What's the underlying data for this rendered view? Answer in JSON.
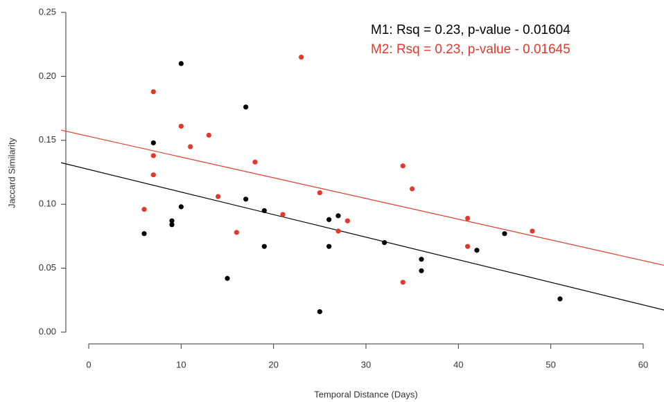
{
  "chart_data": {
    "type": "scatter",
    "xlabel": "Temporal Distance (Days)",
    "ylabel": "Jaccard Similarity",
    "xlim": [
      -3,
      62.25
    ],
    "ylim": [
      -0.0054,
      0.2543
    ],
    "xticks": [
      0,
      10,
      20,
      30,
      40,
      50,
      60
    ],
    "yticks": [
      {
        "value": 0,
        "label": "0.00"
      },
      0.05,
      {
        "value": 0.1,
        "label": "0.10"
      },
      0.15,
      {
        "value": 0.2,
        "label": "0.20"
      },
      0.25
    ],
    "annotations": [
      {
        "text": "M1: Rsq = 0.23, p-value - 0.01604",
        "color": "#000000"
      },
      {
        "text": "M2: Rsq = 0.23, p-value - 0.01645",
        "color": "#e0392b"
      }
    ],
    "series": [
      {
        "color": "#000000",
        "x": [
          6,
          7,
          9,
          9,
          10,
          10,
          15,
          17,
          17,
          19,
          19,
          25,
          26,
          26,
          27,
          32,
          36,
          36,
          42,
          45,
          51
        ],
        "values": [
          0.077,
          0.148,
          0.087,
          0.084,
          0.21,
          0.098,
          0.042,
          0.176,
          0.104,
          0.095,
          0.067,
          0.016,
          0.088,
          0.067,
          0.091,
          0.07,
          0.057,
          0.048,
          0.064,
          0.077,
          0.026
        ],
        "fit": {
          "intercept": 0.1272,
          "slope": -0.001765
        }
      },
      {
        "color": "#e0392b",
        "x": [
          6,
          7,
          7,
          7,
          10,
          11,
          13,
          14,
          16,
          18,
          21,
          23,
          25,
          27,
          28,
          34,
          34,
          35,
          41,
          41,
          48
        ],
        "values": [
          0.096,
          0.188,
          0.138,
          0.123,
          0.161,
          0.145,
          0.154,
          0.106,
          0.078,
          0.133,
          0.092,
          0.215,
          0.109,
          0.079,
          0.087,
          0.13,
          0.039,
          0.112,
          0.089,
          0.067,
          0.079
        ],
        "fit": {
          "intercept": 0.1531,
          "slope": -0.00162
        }
      }
    ]
  }
}
